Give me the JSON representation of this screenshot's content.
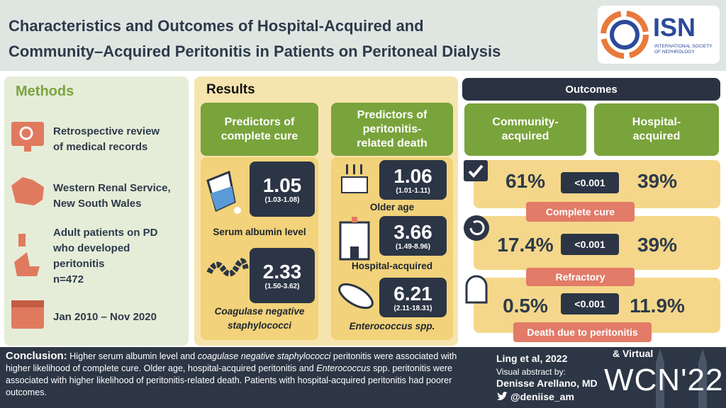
{
  "header": {
    "title_line1": "Characteristics and Outcomes of Hospital-Acquired and",
    "title_line2": "Community–Acquired Peritonitis in Patients on Peritoneal Dialysis",
    "logo": {
      "name": "ISN",
      "subtitle_line1": "INTERNATIONAL SOCIETY",
      "subtitle_line2": "OF NEPHROLOGY"
    }
  },
  "methods": {
    "title": "Methods",
    "items": [
      {
        "lines": [
          "Retrospective review",
          "of medical records"
        ]
      },
      {
        "lines": [
          "Western Renal Service,",
          "New South Wales"
        ]
      },
      {
        "lines": [
          "Adult patients on PD",
          "who developed",
          "peritonitis",
          "n=472"
        ]
      },
      {
        "lines": [
          "Jan 2010 – Nov 2020"
        ]
      }
    ]
  },
  "results": {
    "title": "Results",
    "columns": [
      {
        "heading": [
          "Predictors of",
          "complete cure"
        ],
        "predictors": [
          {
            "value": 1.05,
            "ci": "(1.03-1.08)",
            "label": [
              "Serum albumin level"
            ]
          },
          {
            "value": 2.33,
            "ci": "(1.50-3.62)",
            "label": [
              "Coagulase negative",
              "staphylococci"
            ]
          }
        ]
      },
      {
        "heading": [
          "Predictors of",
          "peritonitis-",
          "related death"
        ],
        "predictors": [
          {
            "value": 1.06,
            "ci": "(1.01-1.11)",
            "label": [
              "Older age"
            ]
          },
          {
            "value": 3.66,
            "ci": "(1.49-8.96)",
            "label": [
              "Hospital-acquired"
            ]
          },
          {
            "value": 6.21,
            "ci": "(2.11-18.31)",
            "label": [
              "Enterococcus spp."
            ]
          }
        ]
      }
    ]
  },
  "outcomes": {
    "title": "Outcomes",
    "groups": [
      [
        "Community-",
        "acquired"
      ],
      [
        "Hospital-",
        "acquired"
      ]
    ],
    "rows": [
      {
        "label": "Complete cure",
        "community": "61%",
        "p": "<0.001",
        "hospital": "39%"
      },
      {
        "label": "Refractory",
        "community": "17.4%",
        "p": "<0.001",
        "hospital": "39%"
      },
      {
        "label": "Death due to peritonitis",
        "community": "0.5%",
        "p": "<0.001",
        "hospital": "11.9%"
      }
    ]
  },
  "footer": {
    "conclusion": {
      "label": "Conclusion:",
      "segments": [
        "Higher serum albumin level and",
        "coagulase negative staphylococci",
        "peritonitis were associated with higher likelihood of complete cure. Older age, hospital-acquired peritonitis and",
        "Enterococcus",
        "spp. peritonitis were associated with higher likelihood of peritonitis-related death. Patients with hospital-acquired peritonitis had poorer outcomes."
      ]
    },
    "citation": "Ling et al, 2022",
    "credit": "Visual abstract by:",
    "author": "Denisse Arellano, MD",
    "handle": "@deniise_am",
    "event_prefix": "& Virtual",
    "event": "WCN'22"
  }
}
